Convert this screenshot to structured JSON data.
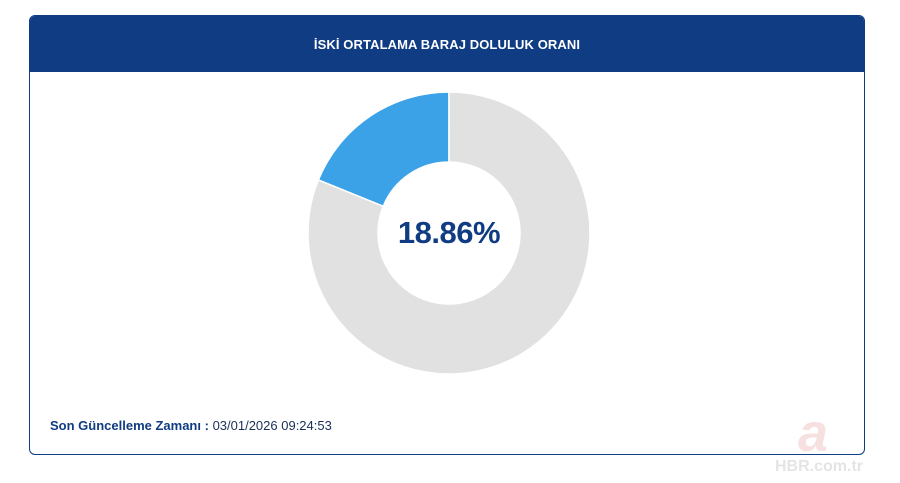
{
  "header": {
    "title": "İSKİ ORTALAMA BARAJ DOLULUK ORANI"
  },
  "chart_data": {
    "type": "pie",
    "title": "İSKİ ORTALAMA BARAJ DOLULUK ORANI",
    "center_label": "18.86%",
    "slices": [
      {
        "value": 18.86,
        "color": "#3ba2e8"
      },
      {
        "value": 81.14,
        "color": "#e1e1e1"
      }
    ]
  },
  "footer": {
    "update_label": "Son Güncelleme Zamanı :",
    "update_value": "03/01/2026 09:24:53"
  },
  "watermark": {
    "logo_letter": "a",
    "site": "HBR.com.tr"
  }
}
